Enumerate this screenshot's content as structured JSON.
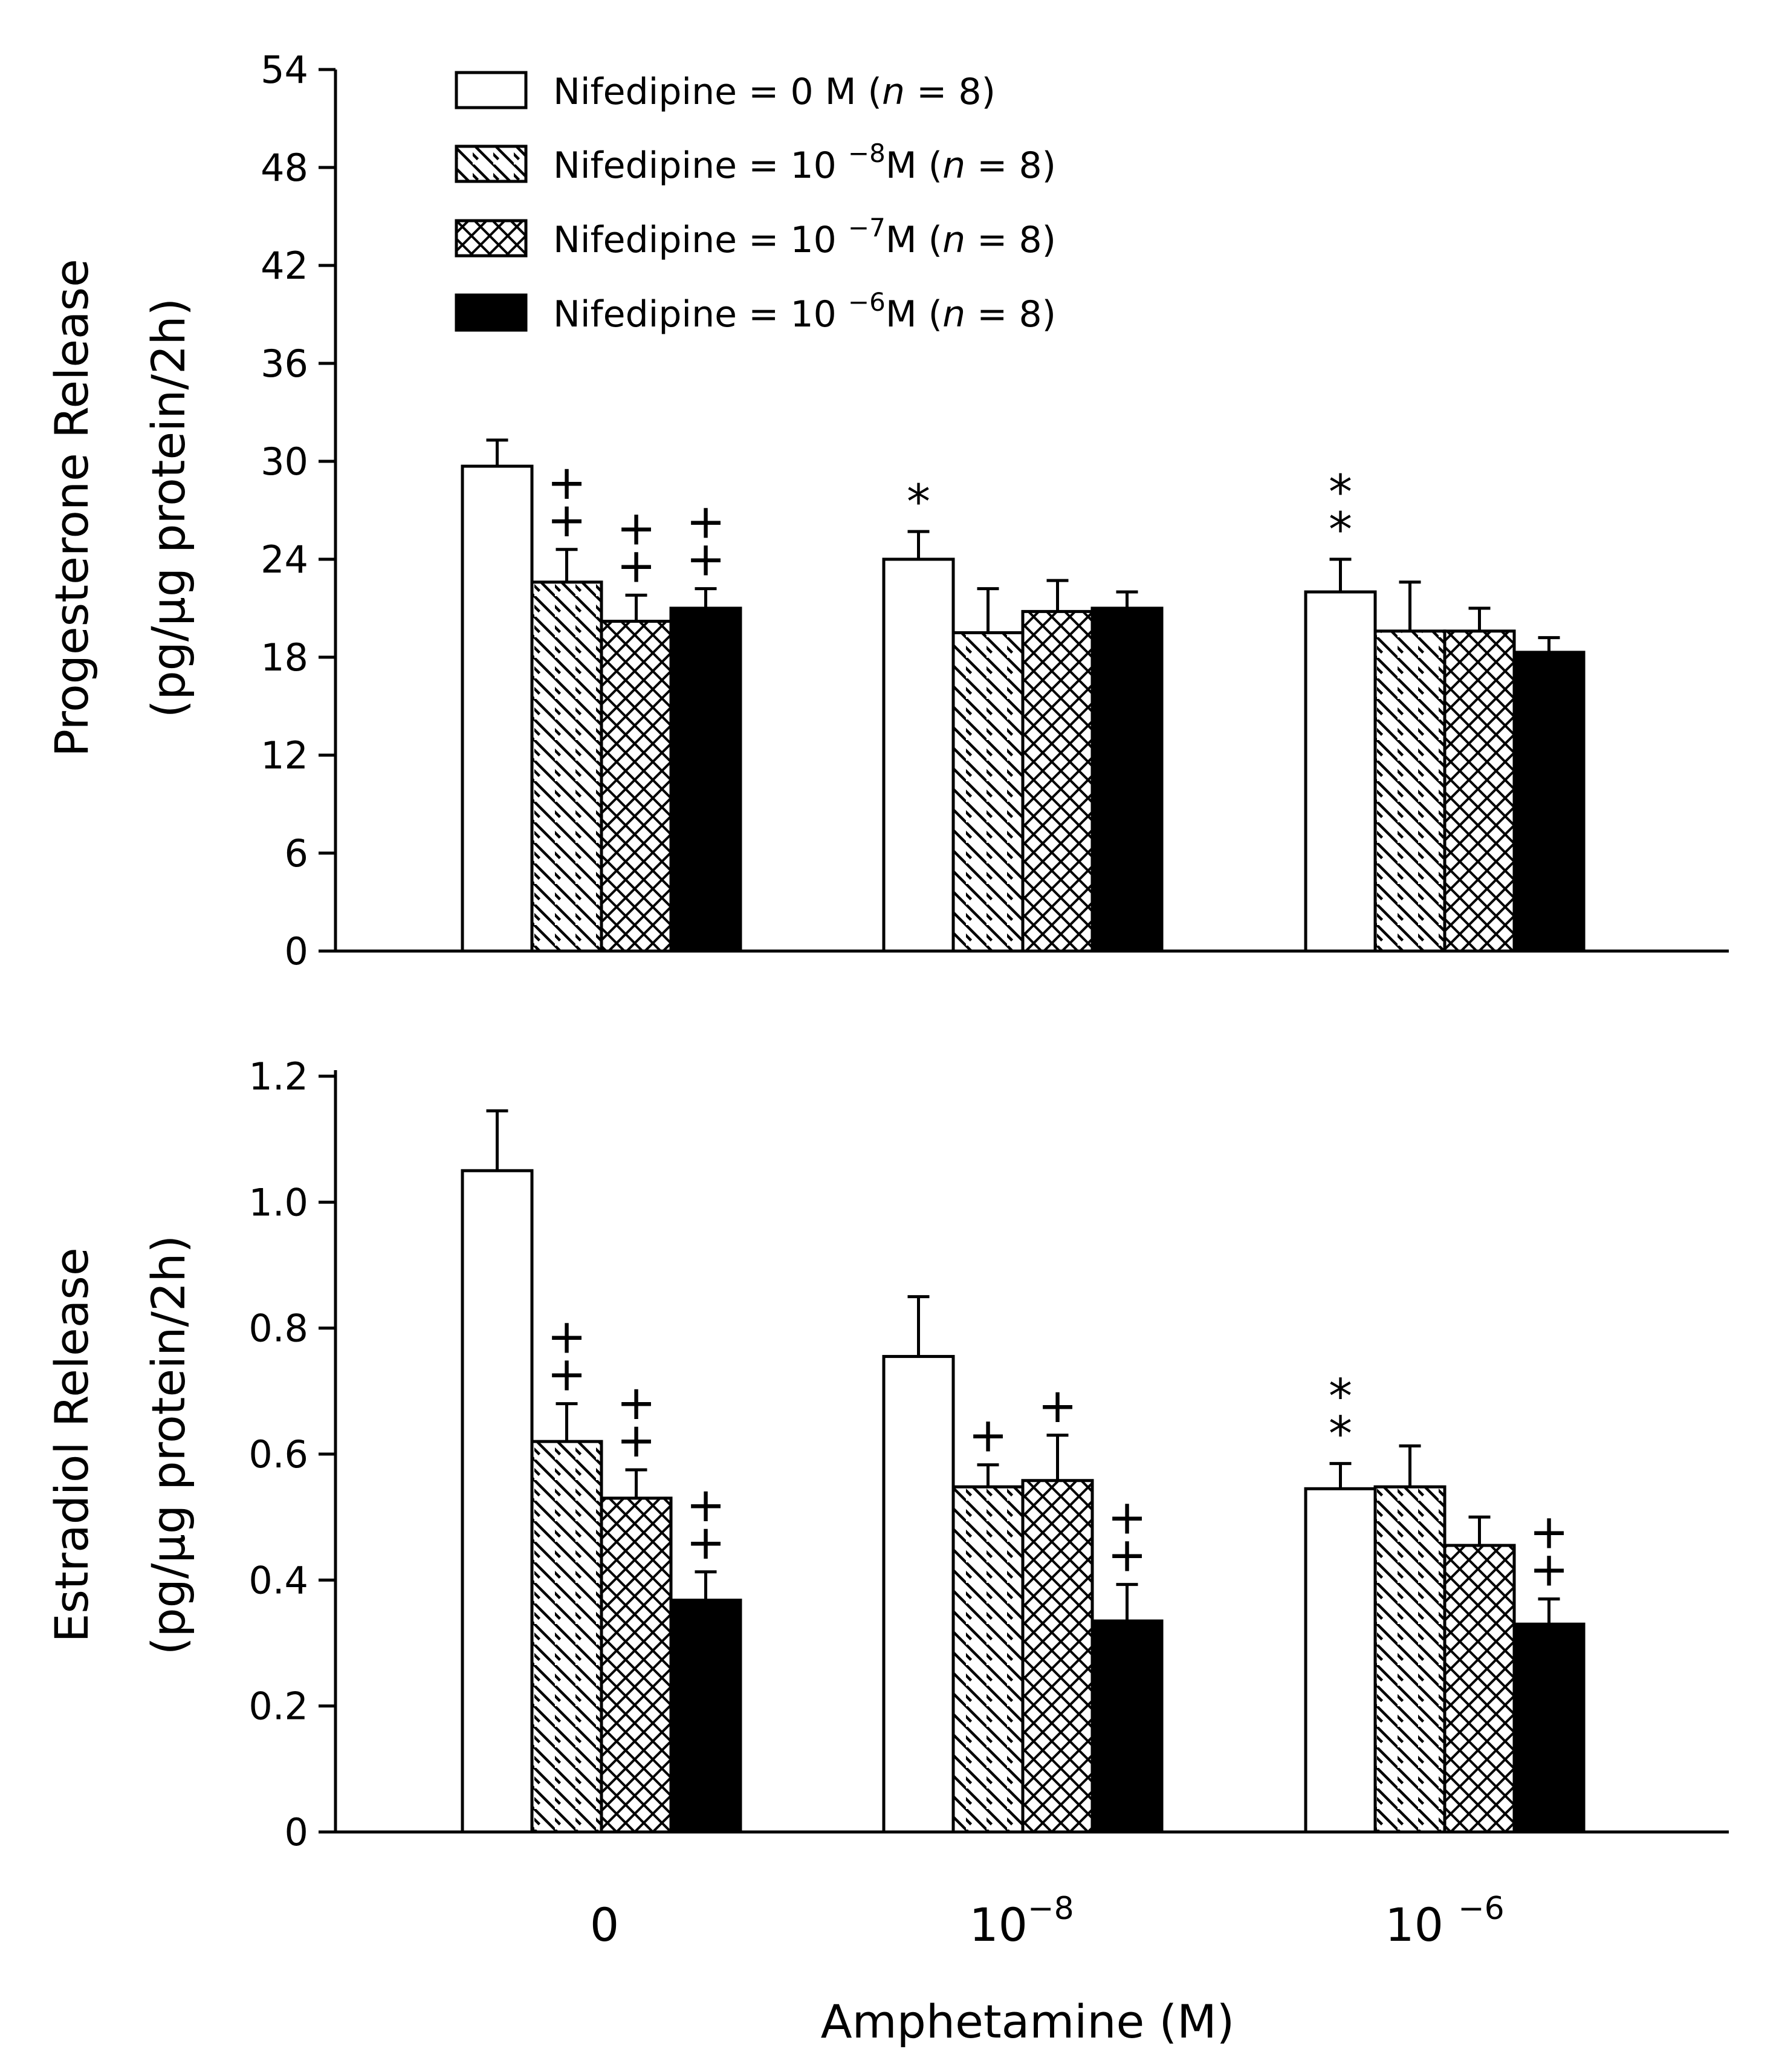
{
  "chart_data": {
    "type": "bar",
    "xlabel": "Amphetamine (M)",
    "categories": [
      {
        "base": "0",
        "exp": ""
      },
      {
        "base": "10",
        "exp": "−8"
      },
      {
        "base": "10 ",
        "exp": "−6"
      }
    ],
    "legend": [
      {
        "pre": "Nifedipine =   0 M (",
        "n": "n",
        "post": " = 8)",
        "sup": ""
      },
      {
        "pre": "Nifedipine = 10 ",
        "sup": "−8",
        "mid": "M (",
        "n": "n",
        "post": " = 8)"
      },
      {
        "pre": "Nifedipine = 10 ",
        "sup": "−7",
        "mid": "M (",
        "n": "n",
        "post": " = 8)"
      },
      {
        "pre": "Nifedipine = 10 ",
        "sup": "−6",
        "mid": "M (",
        "n": "n",
        "post": " = 8)"
      }
    ],
    "series_fill": [
      "white",
      "diagonal",
      "crosshatch",
      "black"
    ],
    "panels": [
      {
        "ylabel_line1": "Progesterone Release",
        "ylabel_line2": "(pg/μg protein/2h)",
        "ylim": [
          0,
          54
        ],
        "yticks": [
          0,
          6,
          12,
          18,
          24,
          30,
          36,
          42,
          48,
          54
        ],
        "tick_labels": [
          "0",
          "6",
          "12",
          "18",
          "24",
          "30",
          "36",
          "42",
          "48",
          "54"
        ],
        "series": [
          {
            "values": [
              29.7,
              24.0,
              22.0
            ],
            "errors": [
              1.6,
              1.7,
              2.0
            ]
          },
          {
            "values": [
              22.6,
              19.5,
              19.6
            ],
            "errors": [
              2.0,
              2.7,
              3.0
            ]
          },
          {
            "values": [
              20.2,
              20.8,
              19.6
            ],
            "errors": [
              1.6,
              1.9,
              1.4
            ]
          },
          {
            "values": [
              21.0,
              21.0,
              18.3
            ],
            "errors": [
              1.2,
              1.0,
              0.9
            ]
          }
        ],
        "annotations": [
          {
            "category": 0,
            "series": 1,
            "text": [
              "+",
              "+"
            ]
          },
          {
            "category": 0,
            "series": 2,
            "text": [
              "+",
              "+"
            ]
          },
          {
            "category": 0,
            "series": 3,
            "text": [
              "+",
              "+"
            ]
          },
          {
            "category": 1,
            "series": 0,
            "text": [
              "*"
            ]
          },
          {
            "category": 2,
            "series": 0,
            "text": [
              "*",
              "*"
            ]
          }
        ]
      },
      {
        "ylabel_line1": "Estradiol Release",
        "ylabel_line2": "(pg/μg protein/2h)",
        "ylim": [
          0,
          1.4
        ],
        "yticks": [
          0,
          0.2,
          0.4,
          0.6,
          0.8,
          1.0,
          1.2
        ],
        "tick_labels": [
          "0",
          "0.2",
          "0.4",
          "0.6",
          "0.8",
          "1.0",
          "1.2"
        ],
        "series": [
          {
            "values": [
              1.05,
              0.755,
              0.545
            ],
            "errors": [
              0.095,
              0.095,
              0.04
            ]
          },
          {
            "values": [
              0.62,
              0.548,
              0.548
            ],
            "errors": [
              0.06,
              0.035,
              0.065
            ]
          },
          {
            "values": [
              0.53,
              0.558,
              0.455
            ],
            "errors": [
              0.045,
              0.072,
              0.045
            ]
          },
          {
            "values": [
              0.368,
              0.335,
              0.33
            ],
            "errors": [
              0.045,
              0.058,
              0.04
            ]
          }
        ],
        "annotations": [
          {
            "category": 0,
            "series": 1,
            "text": [
              "+",
              "+"
            ]
          },
          {
            "category": 0,
            "series": 2,
            "text": [
              "+",
              "+"
            ]
          },
          {
            "category": 0,
            "series": 3,
            "text": [
              "+",
              "+"
            ]
          },
          {
            "category": 1,
            "series": 1,
            "text": [
              "+"
            ]
          },
          {
            "category": 1,
            "series": 2,
            "text": [
              "+"
            ]
          },
          {
            "category": 1,
            "series": 3,
            "text": [
              "+",
              "+"
            ]
          },
          {
            "category": 2,
            "series": 0,
            "text": [
              "*",
              "*"
            ]
          },
          {
            "category": 2,
            "series": 3,
            "text": [
              "+",
              "+"
            ]
          }
        ]
      }
    ]
  }
}
